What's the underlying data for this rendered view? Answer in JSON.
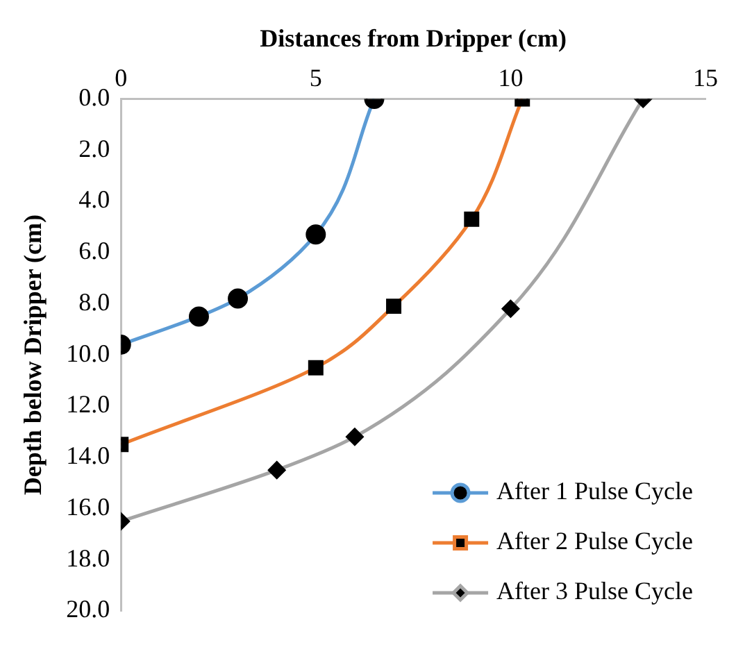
{
  "chart_data": {
    "type": "line",
    "xlabel": "Distances from Dripper (cm)",
    "ylabel": "Depth below Dripper (cm)",
    "xlim": [
      0,
      15
    ],
    "xticks": [
      0,
      5,
      10,
      15
    ],
    "ylim": [
      20,
      0
    ],
    "yticks": [
      {
        "value": 0,
        "label": "0.0"
      },
      {
        "value": 2,
        "label": "2.0"
      },
      {
        "value": 4,
        "label": "4.0"
      },
      {
        "value": 6,
        "label": "6.0"
      },
      {
        "value": 8,
        "label": "8.0"
      },
      {
        "value": 10,
        "label": "10.0"
      },
      {
        "value": 12,
        "label": "12.0"
      },
      {
        "value": 14,
        "label": "14.0"
      },
      {
        "value": 16,
        "label": "16.0"
      },
      {
        "value": 18,
        "label": "18.0"
      },
      {
        "value": 20,
        "label": "20.0"
      }
    ],
    "grid": false,
    "legend": "bottom right",
    "series": [
      {
        "name": "After 1 Pulse Cycle",
        "color": "#5b9bd5",
        "marker": "circle",
        "x": [
          6.5,
          5,
          3,
          2,
          0
        ],
        "values": [
          0,
          5.3,
          7.8,
          8.5,
          9.6
        ]
      },
      {
        "name": "After 2 Pulse Cycle",
        "color": "#ed7d31",
        "marker": "square",
        "x": [
          10.3,
          9,
          7,
          5,
          0
        ],
        "values": [
          0,
          4.7,
          8.1,
          10.5,
          13.5
        ]
      },
      {
        "name": "After 3 Pulse Cycle",
        "color": "#a5a5a5",
        "marker": "diamond",
        "x": [
          13.4,
          10,
          6,
          4,
          0
        ],
        "values": [
          0,
          8.2,
          13.2,
          14.5,
          16.5
        ]
      }
    ]
  }
}
